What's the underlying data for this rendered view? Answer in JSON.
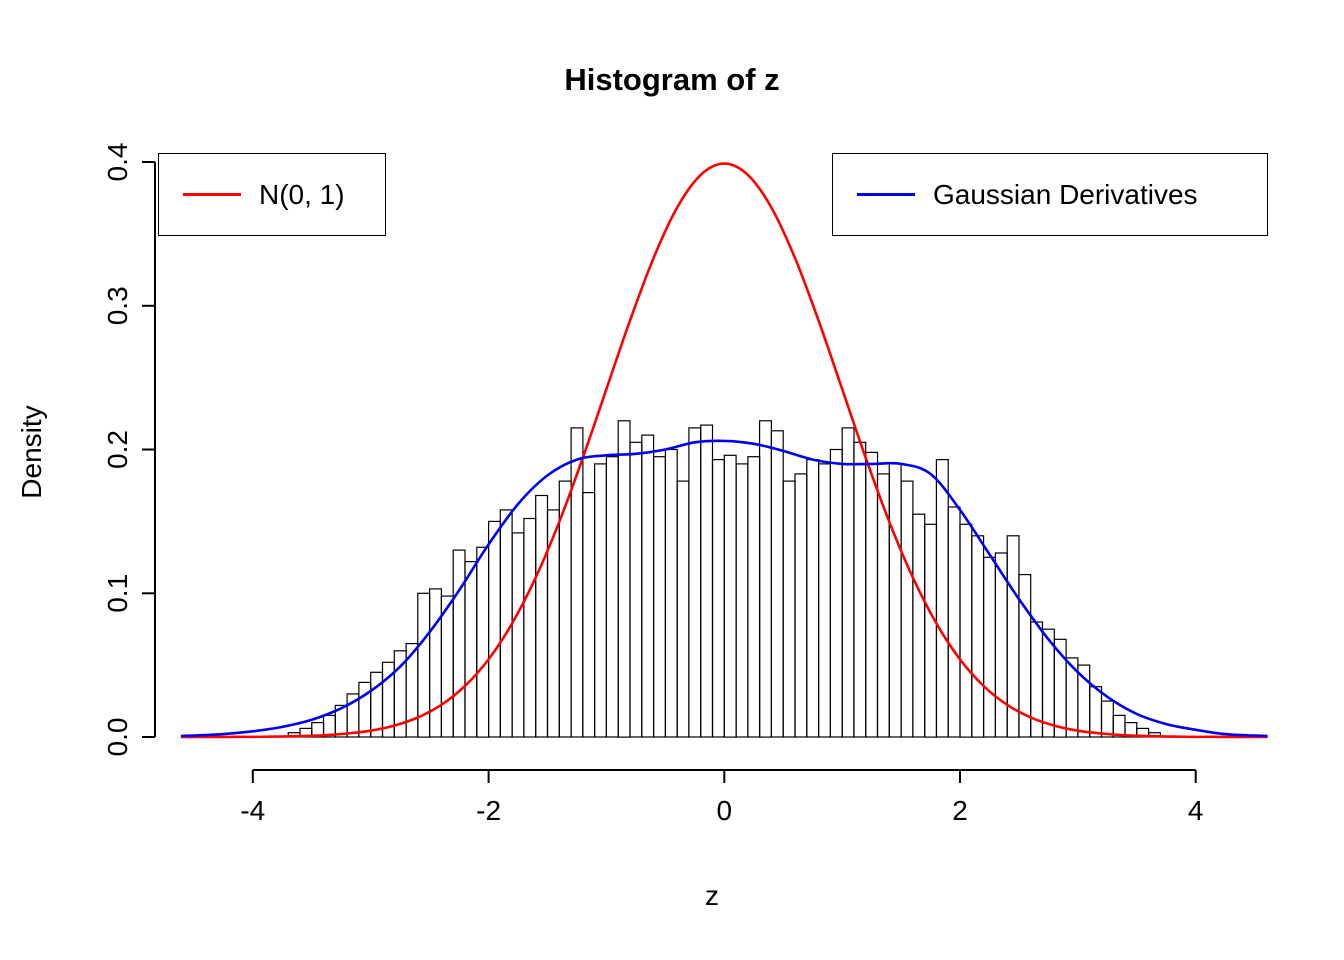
{
  "window": {
    "background": "#ffffff"
  },
  "chart_data": {
    "type": "bar",
    "subtype": "histogram-with-density-curves",
    "title": "Histogram of z",
    "xlabel": "z",
    "ylabel": "Density",
    "xlim": [
      -4.83,
      4.63
    ],
    "ylim": [
      0,
      0.4
    ],
    "x_ticks": [
      -4,
      -2,
      0,
      2,
      4
    ],
    "x_tick_labels": [
      "-4",
      "-2",
      "0",
      "2",
      "4"
    ],
    "y_ticks": [
      0,
      0.1,
      0.2,
      0.3,
      0.4
    ],
    "y_tick_labels": [
      "0.0",
      "0.1",
      "0.2",
      "0.3",
      "0.4"
    ],
    "grid": false,
    "axis_color": "#000000",
    "histogram": {
      "bin_start": -3.7,
      "bin_width": 0.1,
      "bar_fill": "none",
      "bar_stroke": "#000000",
      "densities": [
        0.003,
        0.006,
        0.01,
        0.015,
        0.022,
        0.03,
        0.038,
        0.045,
        0.052,
        0.06,
        0.065,
        0.1,
        0.103,
        0.098,
        0.13,
        0.122,
        0.132,
        0.15,
        0.158,
        0.142,
        0.152,
        0.168,
        0.158,
        0.178,
        0.215,
        0.17,
        0.19,
        0.195,
        0.22,
        0.205,
        0.21,
        0.195,
        0.2,
        0.178,
        0.215,
        0.217,
        0.193,
        0.196,
        0.19,
        0.195,
        0.22,
        0.213,
        0.178,
        0.183,
        0.193,
        0.19,
        0.2,
        0.215,
        0.205,
        0.198,
        0.183,
        0.19,
        0.178,
        0.155,
        0.148,
        0.193,
        0.16,
        0.148,
        0.14,
        0.125,
        0.128,
        0.14,
        0.113,
        0.08,
        0.075,
        0.068,
        0.055,
        0.05,
        0.035,
        0.025,
        0.015,
        0.01,
        0.006,
        0.003
      ]
    },
    "series": [
      {
        "name": "N(0, 1)",
        "color": "#ff0000",
        "x": [
          -4.6,
          -4.4,
          -4.2,
          -4.0,
          -3.8,
          -3.6,
          -3.4,
          -3.2,
          -3.0,
          -2.8,
          -2.6,
          -2.4,
          -2.2,
          -2.0,
          -1.8,
          -1.6,
          -1.4,
          -1.2,
          -1.0,
          -0.8,
          -0.6,
          -0.4,
          -0.2,
          0,
          0.2,
          0.4,
          0.6,
          0.8,
          1.0,
          1.2,
          1.4,
          1.6,
          1.8,
          2.0,
          2.2,
          2.4,
          2.6,
          2.8,
          3.0,
          3.2,
          3.4,
          3.6,
          3.8,
          4.0,
          4.2,
          4.4,
          4.6
        ],
        "y": [
          0.0,
          0.0,
          0.0001,
          0.0001,
          0.0003,
          0.0006,
          0.0012,
          0.0024,
          0.0044,
          0.0079,
          0.0136,
          0.0224,
          0.0355,
          0.054,
          0.079,
          0.1109,
          0.1497,
          0.1942,
          0.242,
          0.2897,
          0.3332,
          0.3683,
          0.391,
          0.3989,
          0.391,
          0.3683,
          0.3332,
          0.2897,
          0.242,
          0.1942,
          0.1497,
          0.1109,
          0.079,
          0.054,
          0.0355,
          0.0224,
          0.0136,
          0.0079,
          0.0044,
          0.0024,
          0.0012,
          0.0006,
          0.0003,
          0.0001,
          0.0001,
          0.0,
          0.0
        ]
      },
      {
        "name": "Gaussian Derivatives",
        "color": "#0000ee",
        "x": [
          -4.6,
          -4.5,
          -4.25,
          -4,
          -3.75,
          -3.5,
          -3.25,
          -3,
          -2.75,
          -2.5,
          -2.25,
          -2,
          -1.75,
          -1.5,
          -1.25,
          -1,
          -0.75,
          -0.5,
          -0.25,
          0,
          0.25,
          0.5,
          0.75,
          1,
          1.25,
          1.5,
          1.75,
          2,
          2.25,
          2.5,
          2.75,
          3,
          3.25,
          3.5,
          3.75,
          4,
          4.25,
          4.5,
          4.6
        ],
        "y": [
          0.0008,
          0.001,
          0.002,
          0.004,
          0.007,
          0.012,
          0.02,
          0.032,
          0.049,
          0.073,
          0.102,
          0.134,
          0.162,
          0.182,
          0.193,
          0.196,
          0.197,
          0.2,
          0.205,
          0.206,
          0.204,
          0.199,
          0.193,
          0.19,
          0.19,
          0.19,
          0.183,
          0.158,
          0.127,
          0.096,
          0.068,
          0.045,
          0.028,
          0.016,
          0.009,
          0.005,
          0.002,
          0.001,
          0.0008
        ]
      }
    ],
    "legend": [
      {
        "label": "N(0, 1)",
        "color": "#ff0000",
        "position": "top-left"
      },
      {
        "label": "Gaussian Derivatives",
        "color": "#0000ee",
        "position": "top-right"
      }
    ]
  }
}
